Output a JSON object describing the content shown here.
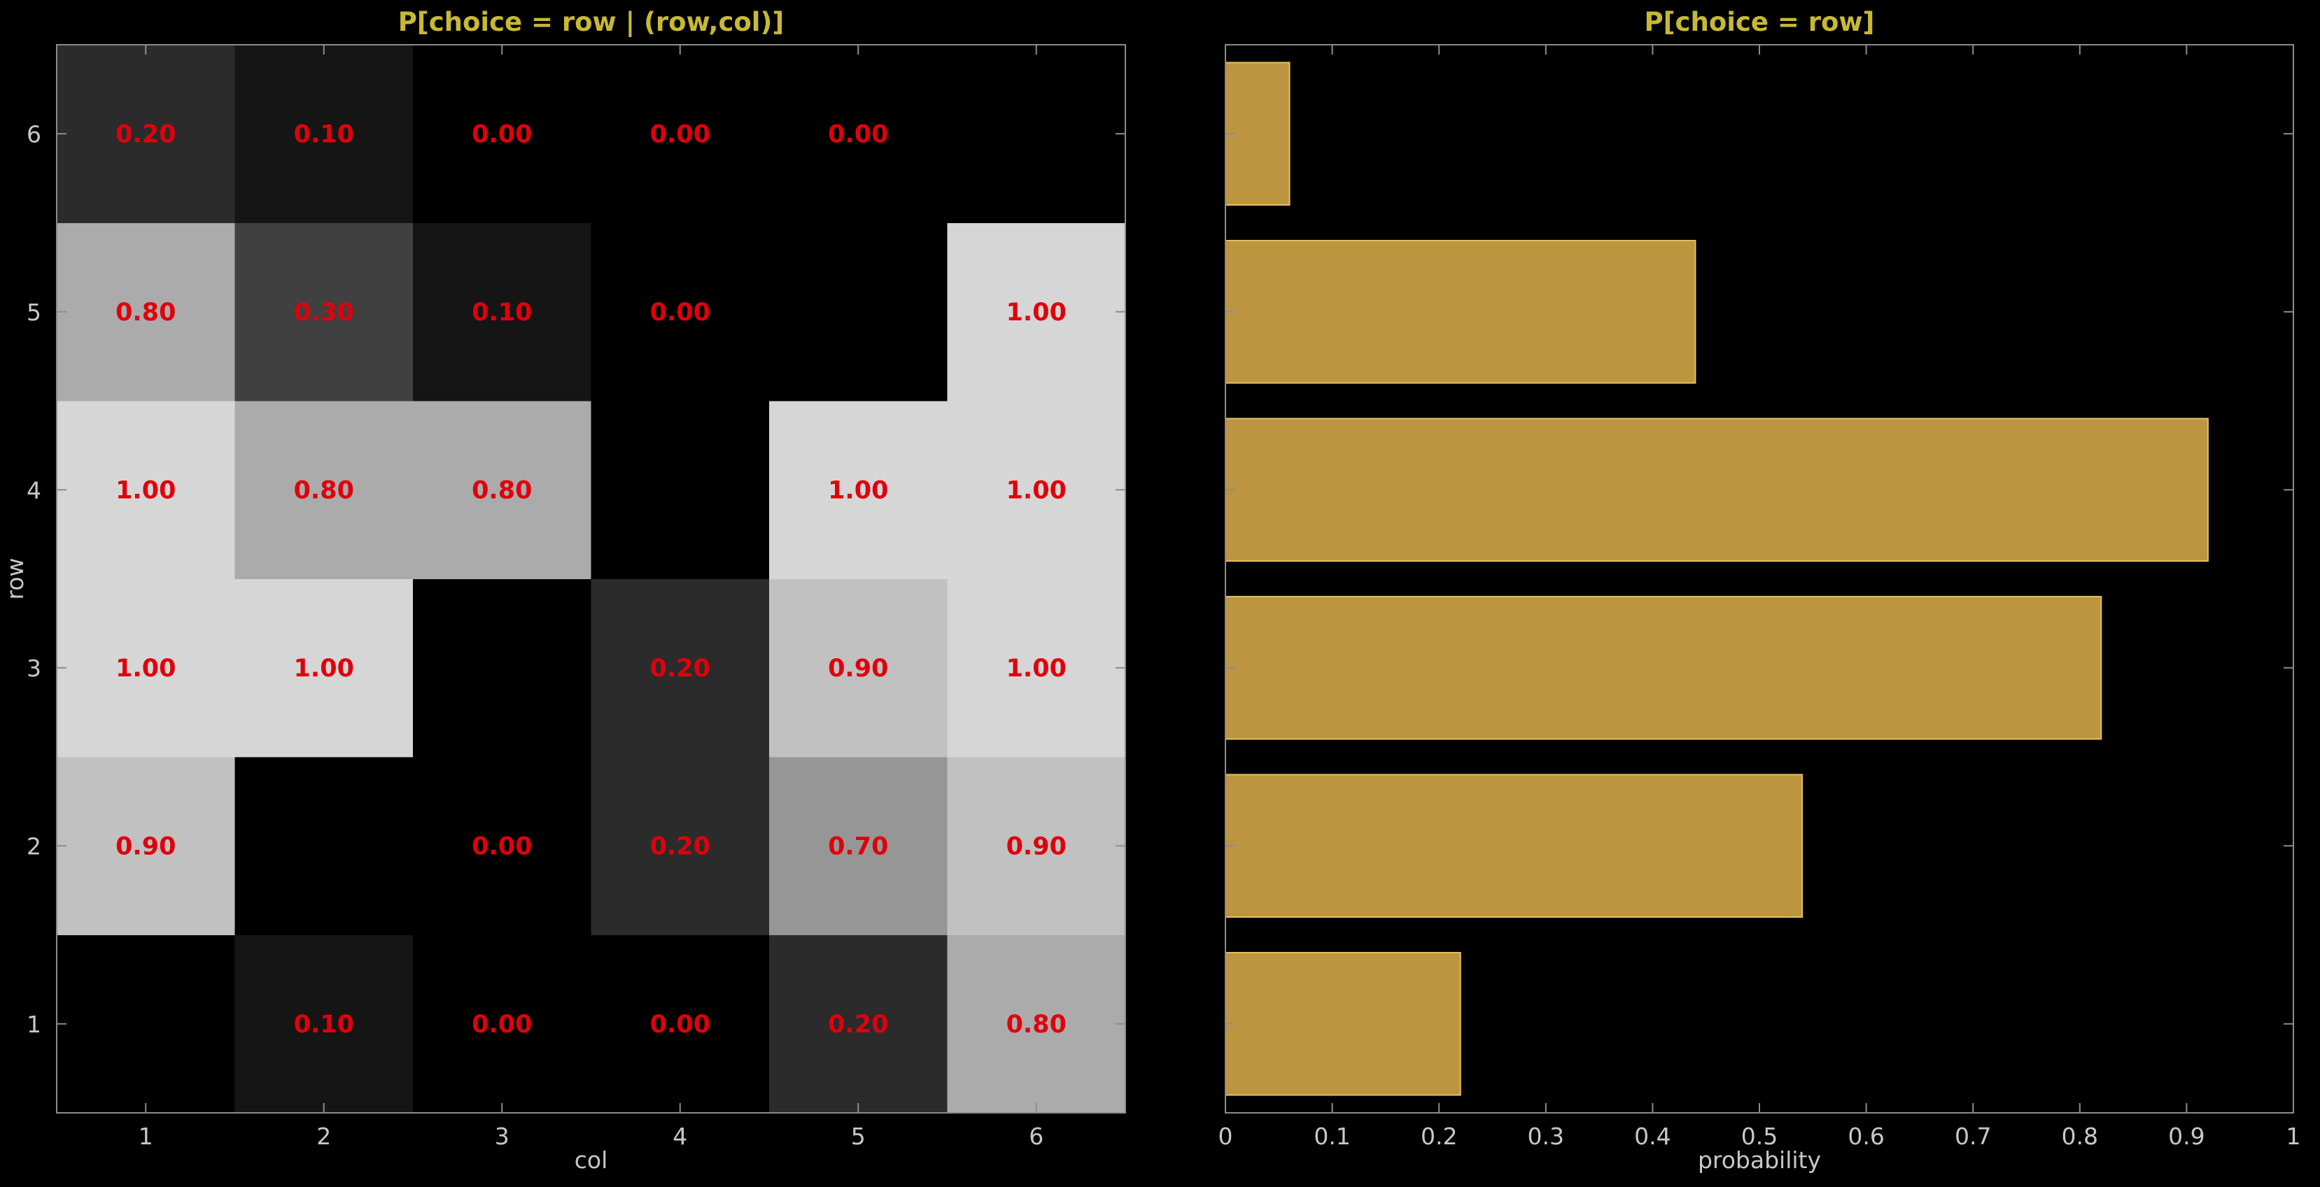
{
  "colors": {
    "background": "#000000",
    "title": "#c8b934",
    "axis": "#8c8c8c",
    "text": "#c8c8c8",
    "cell_label": "#e0000b",
    "bar_fill": "#bd9541",
    "bar_edge": "#e3c15e",
    "cell_gray_max": "#d6d6d6"
  },
  "chart_data": [
    {
      "type": "heatmap",
      "title": "P[choice = row | (row,col)]",
      "xlabel": "col",
      "ylabel": "row",
      "x_categories": [
        "1",
        "2",
        "3",
        "4",
        "5",
        "6"
      ],
      "y_categories": [
        "1",
        "2",
        "3",
        "4",
        "5",
        "6"
      ],
      "value_range": [
        0,
        1
      ],
      "colormap": "gray",
      "cells": [
        {
          "row": 1,
          "col": 1,
          "value": 0.0,
          "label": ""
        },
        {
          "row": 1,
          "col": 2,
          "value": 0.1,
          "label": "0.10"
        },
        {
          "row": 1,
          "col": 3,
          "value": 0.0,
          "label": "0.00"
        },
        {
          "row": 1,
          "col": 4,
          "value": 0.0,
          "label": "0.00"
        },
        {
          "row": 1,
          "col": 5,
          "value": 0.2,
          "label": "0.20"
        },
        {
          "row": 1,
          "col": 6,
          "value": 0.8,
          "label": "0.80"
        },
        {
          "row": 2,
          "col": 1,
          "value": 0.9,
          "label": "0.90"
        },
        {
          "row": 2,
          "col": 2,
          "value": 0.0,
          "label": ""
        },
        {
          "row": 2,
          "col": 3,
          "value": 0.0,
          "label": "0.00"
        },
        {
          "row": 2,
          "col": 4,
          "value": 0.2,
          "label": "0.20"
        },
        {
          "row": 2,
          "col": 5,
          "value": 0.7,
          "label": "0.70"
        },
        {
          "row": 2,
          "col": 6,
          "value": 0.9,
          "label": "0.90"
        },
        {
          "row": 3,
          "col": 1,
          "value": 1.0,
          "label": "1.00"
        },
        {
          "row": 3,
          "col": 2,
          "value": 1.0,
          "label": "1.00"
        },
        {
          "row": 3,
          "col": 3,
          "value": 0.0,
          "label": ""
        },
        {
          "row": 3,
          "col": 4,
          "value": 0.2,
          "label": "0.20"
        },
        {
          "row": 3,
          "col": 5,
          "value": 0.9,
          "label": "0.90"
        },
        {
          "row": 3,
          "col": 6,
          "value": 1.0,
          "label": "1.00"
        },
        {
          "row": 4,
          "col": 1,
          "value": 1.0,
          "label": "1.00"
        },
        {
          "row": 4,
          "col": 2,
          "value": 0.8,
          "label": "0.80"
        },
        {
          "row": 4,
          "col": 3,
          "value": 0.8,
          "label": "0.80"
        },
        {
          "row": 4,
          "col": 4,
          "value": 0.0,
          "label": ""
        },
        {
          "row": 4,
          "col": 5,
          "value": 1.0,
          "label": "1.00"
        },
        {
          "row": 4,
          "col": 6,
          "value": 1.0,
          "label": "1.00"
        },
        {
          "row": 5,
          "col": 1,
          "value": 0.8,
          "label": "0.80"
        },
        {
          "row": 5,
          "col": 2,
          "value": 0.3,
          "label": "0.30"
        },
        {
          "row": 5,
          "col": 3,
          "value": 0.1,
          "label": "0.10"
        },
        {
          "row": 5,
          "col": 4,
          "value": 0.0,
          "label": "0.00"
        },
        {
          "row": 5,
          "col": 5,
          "value": 0.0,
          "label": ""
        },
        {
          "row": 5,
          "col": 6,
          "value": 1.0,
          "label": "1.00"
        },
        {
          "row": 6,
          "col": 1,
          "value": 0.2,
          "label": "0.20"
        },
        {
          "row": 6,
          "col": 2,
          "value": 0.1,
          "label": "0.10"
        },
        {
          "row": 6,
          "col": 3,
          "value": 0.0,
          "label": "0.00"
        },
        {
          "row": 6,
          "col": 4,
          "value": 0.0,
          "label": "0.00"
        },
        {
          "row": 6,
          "col": 5,
          "value": 0.0,
          "label": "0.00"
        },
        {
          "row": 6,
          "col": 6,
          "value": 0.0,
          "label": ""
        }
      ]
    },
    {
      "type": "bar",
      "orientation": "horizontal",
      "title": "P[choice = row]",
      "xlabel": "probability",
      "ylabel": "",
      "xlim": [
        0,
        1
      ],
      "xticks": [
        "0",
        "0.1",
        "0.2",
        "0.3",
        "0.4",
        "0.5",
        "0.6",
        "0.7",
        "0.8",
        "0.9",
        "1"
      ],
      "categories": [
        "1",
        "2",
        "3",
        "4",
        "5",
        "6"
      ],
      "values": [
        0.22,
        0.54,
        0.82,
        0.92,
        0.44,
        0.06
      ]
    }
  ]
}
